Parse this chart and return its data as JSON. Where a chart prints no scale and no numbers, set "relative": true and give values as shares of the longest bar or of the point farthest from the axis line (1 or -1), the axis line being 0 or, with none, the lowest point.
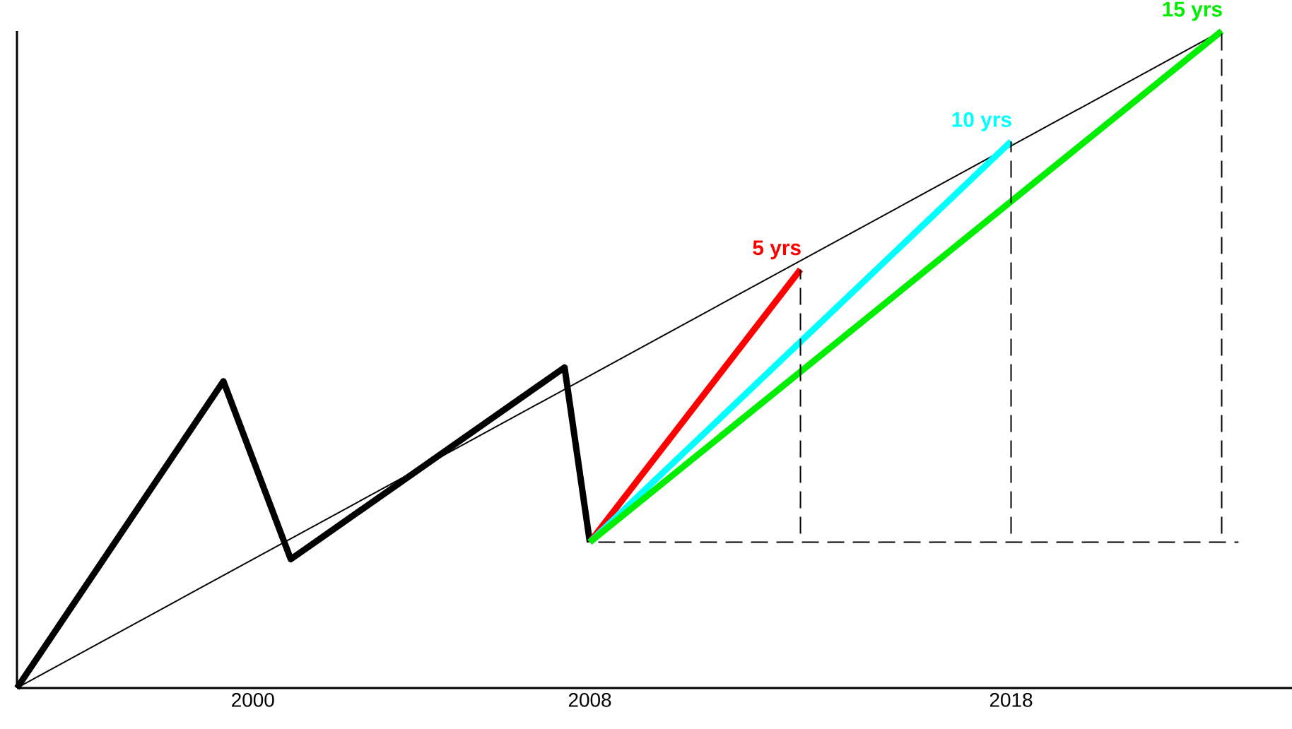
{
  "chart_data": {
    "type": "line",
    "relative": true,
    "xlim": [
      1994.4,
      2024.67
    ],
    "xticks": [
      2000,
      2008,
      2018
    ],
    "series": [
      {
        "color": "#000000",
        "x": [
          1994.4,
          1999.3,
          2000.9,
          2007.4,
          2008
        ],
        "values": [
          0,
          0.467,
          0.196,
          0.488,
          0.222
        ],
        "line_style": "solid"
      },
      {
        "color": "#000000",
        "x": [
          1994.4,
          2023
        ],
        "values": [
          0,
          1
        ],
        "line_style": "solid"
      },
      {
        "color": "#000000",
        "x": [
          2008,
          2023.4
        ],
        "values": [
          0.222,
          0.222
        ],
        "line_style": "dashed"
      },
      {
        "color": "#000000",
        "x": [
          2013,
          2013
        ],
        "values": [
          0.222,
          0.637
        ],
        "line_style": "dashed"
      },
      {
        "color": "#000000",
        "x": [
          2018,
          2018
        ],
        "values": [
          0.222,
          0.832
        ],
        "line_style": "dashed"
      },
      {
        "color": "#000000",
        "x": [
          2023,
          2023
        ],
        "values": [
          0.222,
          1
        ],
        "line_style": "dashed"
      },
      {
        "name": "5 yrs",
        "color": "#ff0000",
        "x": [
          2008,
          2013
        ],
        "values": [
          0.222,
          0.637
        ],
        "line_style": "solid"
      },
      {
        "name": "10 yrs",
        "color": "#00ffff",
        "x": [
          2008,
          2018
        ],
        "values": [
          0.222,
          0.832
        ],
        "line_style": "solid"
      },
      {
        "name": "15 yrs",
        "color": "#00ee00",
        "x": [
          2008,
          2023
        ],
        "values": [
          0.222,
          1
        ],
        "line_style": "solid"
      }
    ]
  }
}
